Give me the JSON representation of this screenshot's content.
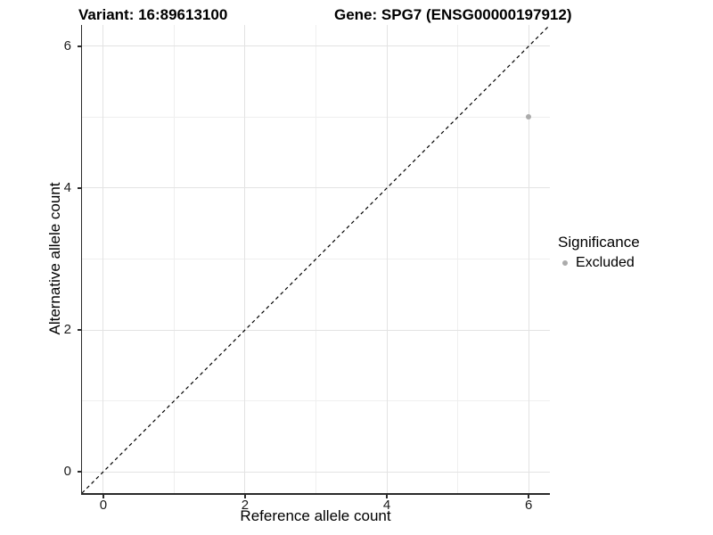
{
  "chart_data": {
    "type": "scatter",
    "title_left": "Variant: 16:89613100",
    "title_right": "Gene: SPG7 (ENSG00000197912)",
    "xlabel": "Reference allele count",
    "ylabel": "Alternative allele count",
    "xlim": [
      -0.3,
      6.3
    ],
    "ylim": [
      -0.3,
      6.3
    ],
    "x_major_ticks": [
      0,
      2,
      4,
      6
    ],
    "x_tick_labels": [
      "0",
      "2",
      "4",
      "6"
    ],
    "x_minor_ticks": [
      1,
      3,
      5
    ],
    "y_major_ticks": [
      0,
      2,
      4,
      6
    ],
    "y_tick_labels": [
      "0",
      "2",
      "4",
      "6"
    ],
    "y_minor_ticks": [
      1,
      3,
      5
    ],
    "grid": true,
    "legend_position": "right",
    "series": [
      {
        "name": "Excluded",
        "color": "#ababab",
        "marker": "circle",
        "marker_size_px": 6,
        "points": [
          [
            6,
            5
          ]
        ]
      }
    ],
    "reference_line": {
      "kind": "identity y=x",
      "style": "dashed",
      "color": "#000000"
    },
    "legend": {
      "title": "Significance",
      "entries": [
        {
          "label": "Excluded",
          "color": "#ababab"
        }
      ]
    },
    "colors": {
      "background": "#ffffff",
      "gridline_major": "#e3e3e3",
      "gridline_minor": "#efefef",
      "axis_line": "#2b2b2b",
      "tick_text": "#1a1a1a",
      "title_text": "#000000"
    }
  }
}
